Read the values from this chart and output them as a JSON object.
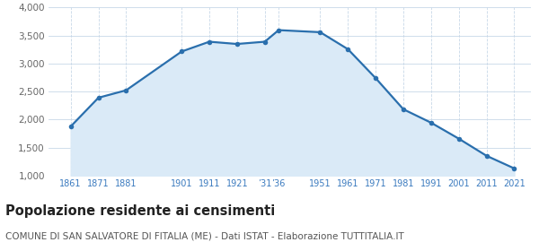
{
  "years": [
    1861,
    1871,
    1881,
    1901,
    1911,
    1921,
    1931,
    1936,
    1951,
    1961,
    1971,
    1981,
    1991,
    2001,
    2011,
    2021
  ],
  "population": [
    1878,
    2391,
    2524,
    3215,
    3390,
    3350,
    3390,
    3597,
    3560,
    3257,
    2740,
    2185,
    1945,
    1660,
    1355,
    1130
  ],
  "ylim": [
    1000,
    4000
  ],
  "yticks": [
    1000,
    1500,
    2000,
    2500,
    3000,
    3500,
    4000
  ],
  "ytick_labels": [
    "1,000",
    "1,500",
    "2,000",
    "2,500",
    "3,000",
    "3,500",
    "4,000"
  ],
  "x_tick_positions": [
    1861,
    1871,
    1881,
    1901,
    1911,
    1921,
    1931,
    1936,
    1951,
    1961,
    1971,
    1981,
    1991,
    2001,
    2011,
    2021
  ],
  "x_tick_labels": [
    "1861",
    "1871",
    "1881",
    "1901",
    "1911",
    "1921",
    "’31",
    "’36",
    "1951",
    "1961",
    "1971",
    "1981",
    "1991",
    "2001",
    "2011",
    "2021"
  ],
  "line_color": "#2a6fad",
  "fill_color": "#daeaf7",
  "marker_color": "#2a6fad",
  "bg_color": "#ffffff",
  "grid_color": "#c8d8e8",
  "title": "Popolazione residente ai censimenti",
  "subtitle": "COMUNE DI SAN SALVATORE DI FITALIA (ME) - Dati ISTAT - Elaborazione TUTTITALIA.IT",
  "title_fontsize": 10.5,
  "subtitle_fontsize": 7.5,
  "ytick_fontsize": 7.5,
  "xtick_fontsize": 7,
  "tick_color": "#3a7abf",
  "ytick_color": "#666666"
}
